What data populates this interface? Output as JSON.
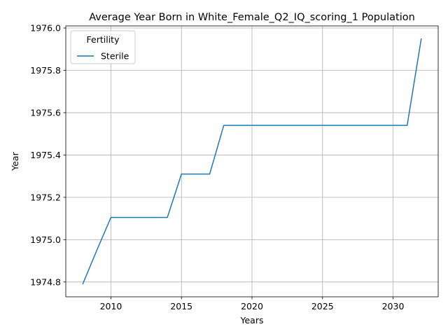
{
  "chart_data": {
    "type": "line",
    "title": "Average Year Born in White_Female_Q2_IQ_scoring_1 Population",
    "xlabel": "Years",
    "ylabel": "Year",
    "xlim": [
      2006.8,
      2033.2
    ],
    "ylim": [
      1974.73,
      1976.01
    ],
    "x_ticks": [
      2010,
      2015,
      2020,
      2025,
      2030
    ],
    "y_ticks": [
      1974.8,
      1975.0,
      1975.2,
      1975.4,
      1975.6,
      1975.8,
      1976.0
    ],
    "x_tick_labels": [
      "2010",
      "2015",
      "2020",
      "2025",
      "2030"
    ],
    "y_tick_labels": [
      "1974.8",
      "1975.0",
      "1975.2",
      "1975.4",
      "1975.6",
      "1975.8",
      "1976.0"
    ],
    "grid": true,
    "legend": {
      "title": "Fertility",
      "placement": "top-left"
    },
    "series": [
      {
        "name": "Sterile",
        "color": "#1f77b4",
        "x": [
          2008,
          2009,
          2010,
          2011,
          2012,
          2013,
          2014,
          2015,
          2016,
          2017,
          2018,
          2019,
          2020,
          2021,
          2022,
          2023,
          2024,
          2025,
          2026,
          2027,
          2028,
          2029,
          2030,
          2031,
          2032
        ],
        "y": [
          1974.79,
          1974.95,
          1975.105,
          1975.105,
          1975.105,
          1975.105,
          1975.105,
          1975.31,
          1975.31,
          1975.31,
          1975.54,
          1975.54,
          1975.54,
          1975.54,
          1975.54,
          1975.54,
          1975.54,
          1975.54,
          1975.54,
          1975.54,
          1975.54,
          1975.54,
          1975.54,
          1975.54,
          1975.95
        ]
      }
    ]
  }
}
